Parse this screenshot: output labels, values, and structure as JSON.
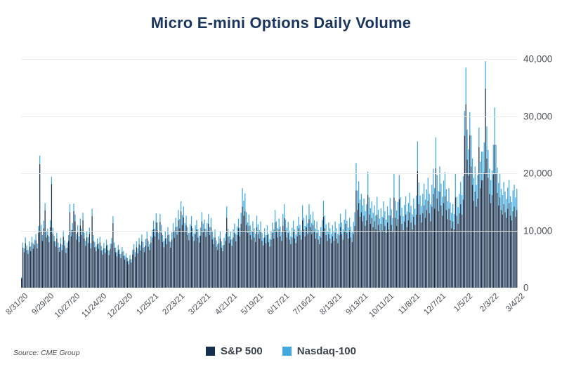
{
  "title": "Micro E-mini Options Daily Volume",
  "source_note": "Source: CME Group",
  "colors": {
    "background": "#ffffff",
    "title": "#1b365e",
    "sp500": "#152f4c",
    "nasdaq": "#41a9dd",
    "gridline": "#e9ebee",
    "axis_label": "#4b5157",
    "legend_text": "#3a434b",
    "source_text": "#4a4e52"
  },
  "legend": [
    {
      "label": "S&P 500",
      "color": "#152f4c"
    },
    {
      "label": "Nasdaq-100",
      "color": "#41a9dd"
    }
  ],
  "chart_data": {
    "type": "bar",
    "stacked": true,
    "title": "Micro E-mini Options Daily Volume",
    "xlabel": "",
    "ylabel": "",
    "ylim": [
      0,
      40000
    ],
    "grid": "horizontal",
    "legend_position": "bottom-center",
    "y_axis_side": "right",
    "y_ticks": [
      0,
      10000,
      20000,
      30000,
      40000
    ],
    "y_tick_labels": [
      "0",
      "10,000",
      "20,000",
      "30,000",
      "40,000"
    ],
    "x_tick_labels": [
      "8/31/20",
      "9/29/20",
      "10/27/20",
      "11/24/20",
      "12/23/20",
      "1/25/21",
      "2/23/21",
      "3/23/21",
      "4/21/21",
      "5/19/21",
      "6/17/21",
      "7/16/21",
      "8/13/21",
      "9/13/21",
      "10/11/21",
      "11/8/21",
      "12/7/21",
      "1/5/22",
      "2/3/22",
      "3/4/22"
    ],
    "x_days_per_tick": 20,
    "series": [
      {
        "name": "S&P 500",
        "color": "#152f4c",
        "values": [
          1600,
          7000,
          6200,
          7800,
          6600,
          5900,
          7200,
          6400,
          7900,
          6800,
          7500,
          8300,
          6900,
          9600,
          21600,
          9800,
          8200,
          10400,
          13500,
          8800,
          9200,
          8000,
          10600,
          18100,
          9400,
          8100,
          7200,
          8600,
          7000,
          6300,
          7700,
          6600,
          8900,
          7400,
          6100,
          7000,
          8200,
          13200,
          9000,
          10100,
          13400,
          11600,
          8400,
          9700,
          8000,
          10900,
          9200,
          11800,
          8600,
          7300,
          8800,
          7800,
          9400,
          6900,
          12500,
          8200,
          7100,
          6400,
          7600,
          6800,
          7900,
          6500,
          5800,
          6900,
          6100,
          7400,
          6600,
          5700,
          6800,
          7700,
          11300,
          7000,
          6200,
          5500,
          6600,
          5900,
          5200,
          6300,
          5600,
          4900,
          5300,
          4600,
          4100,
          5000,
          4400,
          5800,
          6700,
          5400,
          7100,
          6000,
          7600,
          6500,
          8100,
          7000,
          6200,
          7400,
          8600,
          7200,
          6600,
          7900,
          8800,
          10200,
          9000,
          11400,
          10000,
          8400,
          11500,
          9600,
          8000,
          7100,
          8600,
          7600,
          9200,
          8100,
          7000,
          8400,
          9800,
          8700,
          10600,
          9300,
          11800,
          10400,
          13400,
          11000,
          12300,
          9800,
          10900,
          9200,
          8300,
          9600,
          10800,
          9000,
          8200,
          9400,
          10200,
          8800,
          7900,
          9100,
          11600,
          9700,
          10300,
          8900,
          9800,
          11200,
          9200,
          10600,
          8500,
          7600,
          8800,
          7200,
          6600,
          7800,
          8600,
          7000,
          6400,
          7500,
          8200,
          12200,
          8900,
          7800,
          8400,
          7300,
          8800,
          9600,
          8100,
          9200,
          10400,
          9000,
          11200,
          14200,
          12600,
          13400,
          11000,
          9600,
          10800,
          9200,
          8400,
          9800,
          8800,
          8000,
          10600,
          9400,
          8600,
          9800,
          8200,
          7400,
          8800,
          7800,
          9200,
          8000,
          7200,
          8400,
          9600,
          8600,
          11400,
          9800,
          8800,
          10200,
          9000,
          8200,
          10800,
          12200,
          10000,
          8800,
          9600,
          8400,
          7600,
          8800,
          9800,
          8600,
          7800,
          9000,
          10400,
          9200,
          8400,
          11800,
          10200,
          9000,
          10600,
          9400,
          12000,
          10600,
          9400,
          11000,
          9800,
          8600,
          9600,
          8400,
          7600,
          8800,
          9800,
          12400,
          10400,
          9200,
          8200,
          9400,
          8600,
          7800,
          9000,
          8200,
          9600,
          8600,
          7800,
          9200,
          10600,
          9400,
          8400,
          9800,
          11200,
          9600,
          8600,
          10000,
          8800,
          8000,
          9400,
          10800,
          17000,
          13600,
          14800,
          12400,
          13200,
          11600,
          12600,
          10800,
          11800,
          16200,
          12800,
          11200,
          12200,
          10600,
          11600,
          10200,
          12800,
          11000,
          9800,
          11200,
          10000,
          12200,
          10800,
          9600,
          11400,
          10200,
          12600,
          11000,
          9800,
          15800,
          12200,
          10800,
          12000,
          15500,
          12600,
          11200,
          10000,
          11600,
          12800,
          10600,
          11800,
          13200,
          11400,
          10200,
          12400,
          11000,
          12800,
          20400,
          14600,
          12800,
          11400,
          13000,
          14400,
          12200,
          13600,
          15200,
          13000,
          11600,
          14200,
          16400,
          13800,
          20900,
          15600,
          13400,
          16800,
          14400,
          12600,
          14800,
          16000,
          13600,
          12000,
          13800,
          11800,
          10400,
          11600,
          10200,
          15800,
          12600,
          11200,
          13000,
          14600,
          12800,
          15400,
          26600,
          32100,
          22400,
          19600,
          26700,
          21200,
          18000,
          15200,
          16800,
          14200,
          15600,
          24600,
          17400,
          18800,
          18800,
          20200,
          34800,
          22600,
          19200,
          16400,
          14800,
          16200,
          19800,
          25000,
          20000,
          16600,
          14400,
          15800,
          13600,
          12800,
          14600,
          13200,
          12200,
          13800,
          14800,
          12600,
          11800,
          13400,
          14200,
          12400,
          13600
        ]
      },
      {
        "name": "Nasdaq-100",
        "color": "#41a9dd",
        "values": [
          200,
          900,
          700,
          1000,
          800,
          700,
          900,
          800,
          1000,
          900,
          900,
          1100,
          800,
          1200,
          1500,
          1200,
          1000,
          1300,
          1300,
          1100,
          1100,
          1000,
          1200,
          1300,
          1100,
          1000,
          900,
          1000,
          900,
          800,
          1000,
          900,
          1100,
          900,
          800,
          900,
          1000,
          1400,
          1100,
          1200,
          1300,
          1200,
          1000,
          1200,
          1000,
          1200,
          1100,
          1300,
          1000,
          900,
          1100,
          1000,
          1100,
          900,
          1300,
          1000,
          900,
          800,
          1000,
          900,
          1000,
          800,
          800,
          900,
          800,
          1000,
          900,
          800,
          900,
          1000,
          1200,
          900,
          800,
          700,
          900,
          800,
          700,
          800,
          800,
          700,
          700,
          600,
          600,
          700,
          600,
          800,
          900,
          800,
          1000,
          900,
          1100,
          900,
          1200,
          1000,
          900,
          1100,
          1200,
          1000,
          1000,
          1100,
          1300,
          1500,
          1300,
          1600,
          1400,
          1200,
          1400,
          1400,
          1200,
          1100,
          1300,
          1100,
          1400,
          1200,
          1000,
          1300,
          1500,
          1300,
          1600,
          1400,
          1800,
          1600,
          1700,
          1700,
          1900,
          1500,
          1700,
          1400,
          1300,
          1500,
          1700,
          1400,
          1300,
          1500,
          1600,
          1400,
          1200,
          1400,
          1600,
          1500,
          1600,
          1400,
          1500,
          1700,
          1400,
          1600,
          1300,
          1200,
          1400,
          1100,
          1000,
          1200,
          1300,
          1100,
          1000,
          1200,
          1300,
          2000,
          1400,
          1200,
          1300,
          1200,
          1400,
          1600,
          1300,
          1500,
          1700,
          1500,
          1900,
          3200,
          2600,
          3100,
          2200,
          1800,
          2000,
          1700,
          1500,
          1800,
          1600,
          1400,
          2000,
          1700,
          1500,
          1800,
          1400,
          1300,
          1600,
          1400,
          1700,
          1400,
          1300,
          1500,
          1800,
          1600,
          2200,
          1800,
          1600,
          1900,
          1700,
          1500,
          2100,
          2400,
          1900,
          1700,
          1900,
          1600,
          1400,
          1700,
          1900,
          1600,
          1500,
          1800,
          2000,
          1800,
          1600,
          2600,
          2000,
          1800,
          2100,
          1900,
          2600,
          2200,
          1900,
          2300,
          2000,
          1700,
          2000,
          1700,
          1500,
          1800,
          2000,
          2800,
          2200,
          1900,
          1700,
          2000,
          1800,
          1600,
          1900,
          1700,
          2000,
          1800,
          1600,
          2000,
          2300,
          2000,
          1800,
          2100,
          2500,
          2100,
          1900,
          2200,
          1900,
          1700,
          2100,
          2400,
          4800,
          3400,
          3800,
          3000,
          3200,
          2800,
          3000,
          2600,
          2800,
          4100,
          3000,
          2700,
          2900,
          2500,
          2800,
          2400,
          3100,
          2600,
          2300,
          2700,
          2400,
          2900,
          2600,
          2300,
          2800,
          2500,
          3100,
          2700,
          2400,
          4100,
          3000,
          2700,
          3000,
          4200,
          3200,
          2800,
          2500,
          2900,
          3200,
          2700,
          3000,
          3400,
          2900,
          2600,
          3200,
          2800,
          3300,
          5200,
          3800,
          3300,
          2900,
          3400,
          3800,
          3200,
          3600,
          4000,
          3400,
          3000,
          3800,
          4400,
          3600,
          5400,
          4100,
          3500,
          4400,
          3800,
          3300,
          3900,
          4200,
          3600,
          3100,
          3600,
          3100,
          2700,
          3000,
          2700,
          4200,
          3300,
          2900,
          3400,
          3900,
          3400,
          4100,
          4300,
          6400,
          5200,
          4600,
          4000,
          5400,
          4600,
          4000,
          4400,
          3800,
          4100,
          3400,
          4600,
          5000,
          5000,
          5200,
          4800,
          5600,
          4900,
          4400,
          4000,
          4300,
          5200,
          6500,
          5000,
          4400,
          3900,
          4200,
          3700,
          3400,
          3900,
          3600,
          3300,
          3700,
          4000,
          3400,
          3200,
          3600,
          3800,
          3400,
          3700
        ]
      }
    ]
  }
}
